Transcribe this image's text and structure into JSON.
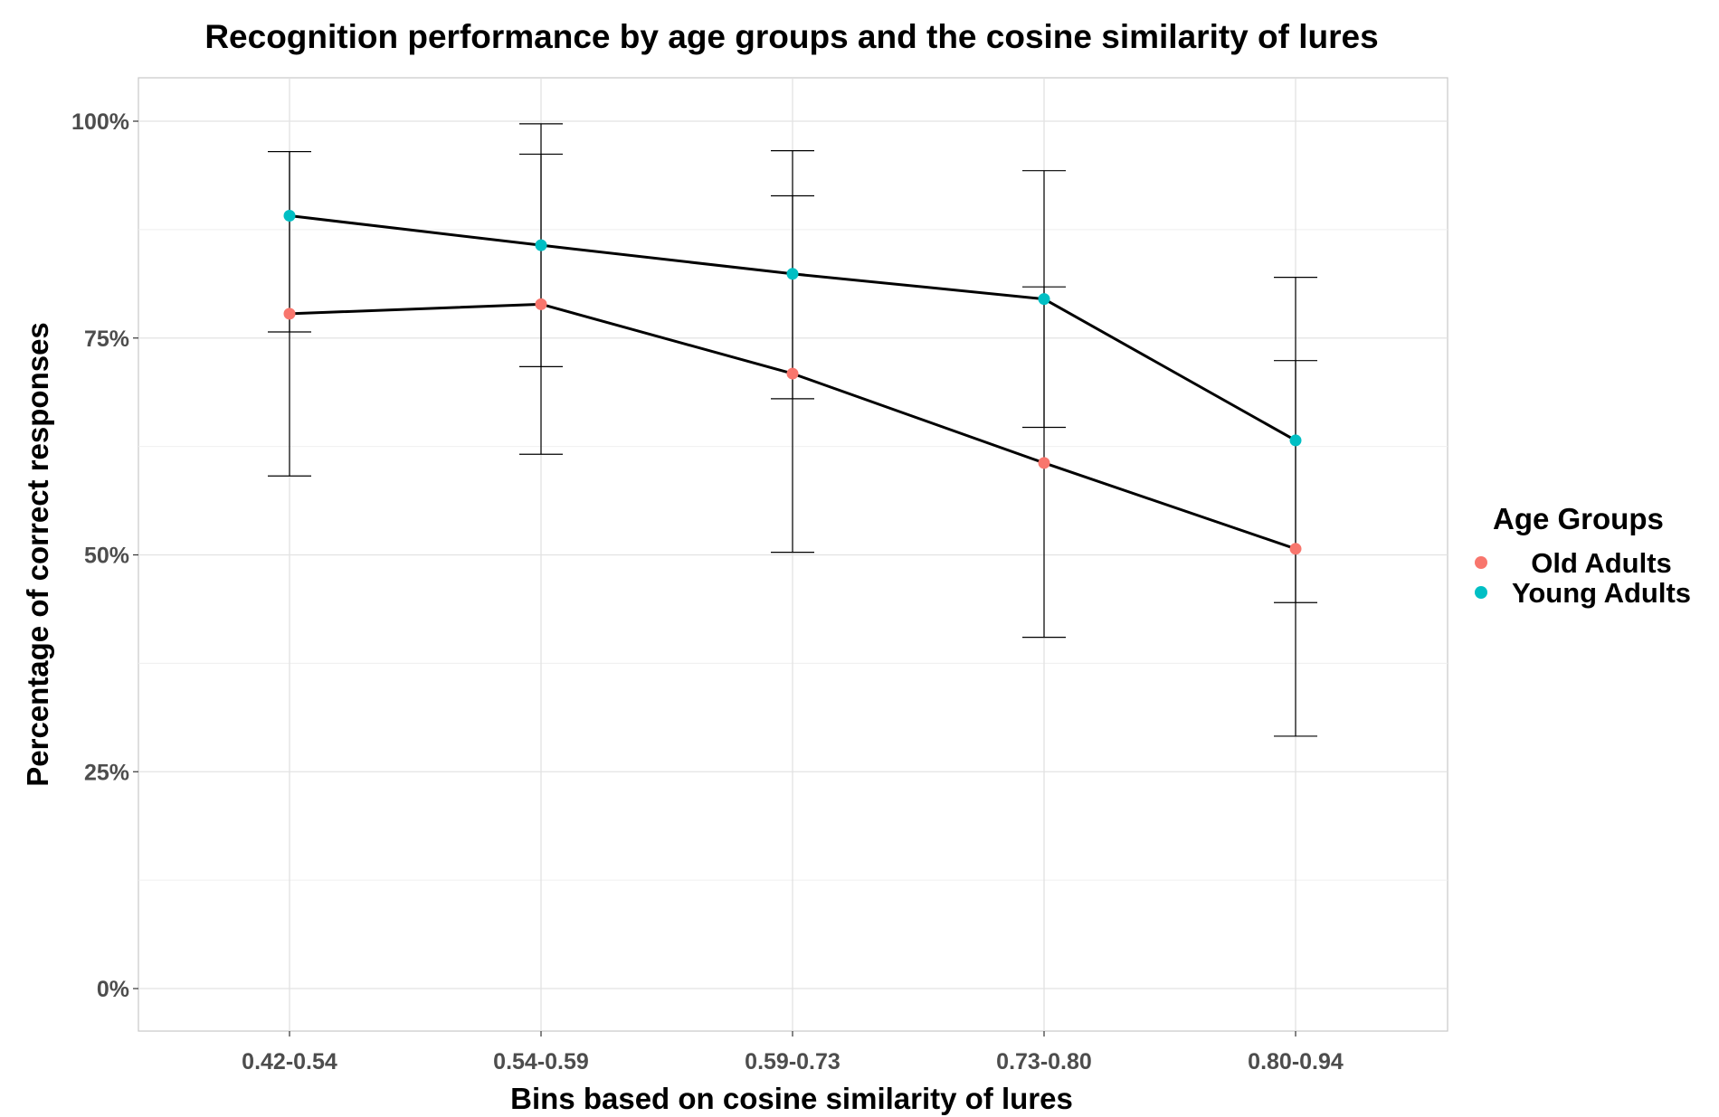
{
  "chart_data": {
    "type": "line",
    "title": "Recognition performance by age groups and the cosine similarity of lures",
    "xlabel": "Bins based on cosine similarity of lures",
    "ylabel": "Percentage of correct responses",
    "categories": [
      "0.42-0.54",
      "0.54-0.59",
      "0.59-0.73",
      "0.73-0.80",
      "0.80-0.94"
    ],
    "y_ticks": [
      "0%",
      "25%",
      "50%",
      "75%",
      "100%"
    ],
    "ylim": [
      0,
      100
    ],
    "grid": true,
    "legend": {
      "title": "Age Groups",
      "position": "right"
    },
    "series": [
      {
        "name": "Old Adults",
        "color": "#F8766D",
        "values": [
          77.8,
          78.9,
          70.9,
          60.6,
          50.7
        ],
        "error_low": [
          59.1,
          61.6,
          50.3,
          40.5,
          29.1
        ],
        "error_high": [
          96.5,
          96.2,
          91.4,
          80.9,
          72.4
        ]
      },
      {
        "name": "Young Adults",
        "color": "#00BFC4",
        "values": [
          89.1,
          85.7,
          82.4,
          79.5,
          63.2
        ],
        "error_low": [
          75.7,
          71.7,
          68.0,
          64.7,
          44.5
        ],
        "error_high": [
          96.5,
          99.7,
          96.6,
          94.3,
          82.0
        ]
      }
    ]
  }
}
